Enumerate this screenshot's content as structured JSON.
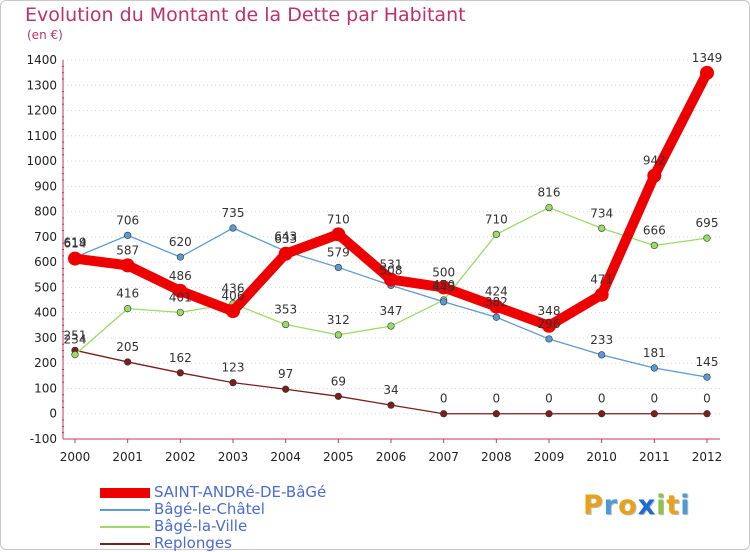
{
  "header": {
    "title": "Evolution du Montant de la Dette par Habitant",
    "subtitle": "(en €)"
  },
  "logo": {
    "text": "Proxiti",
    "letters": [
      "P",
      "r",
      "o",
      "x",
      "i",
      "t",
      "i"
    ],
    "colors": [
      "#e8a21a",
      "#4a9ad6",
      "#e8a21a",
      "#1a6bd6",
      "#8ac24a",
      "#e8a21a",
      "#4a9ad6"
    ]
  },
  "chart_data": {
    "type": "line",
    "title": "Evolution du Montant de la Dette par Habitant",
    "ylabel": "(en €)",
    "x": [
      "2000",
      "2001",
      "2002",
      "2003",
      "2004",
      "2005",
      "2006",
      "2007",
      "2008",
      "2009",
      "2010",
      "2011",
      "2012"
    ],
    "ylim": [
      -100,
      1400
    ],
    "yticks": [
      -100,
      0,
      100,
      200,
      300,
      400,
      500,
      600,
      700,
      800,
      900,
      1000,
      1100,
      1200,
      1300,
      1400
    ],
    "ytick_labels": [
      "-100",
      "0",
      "100",
      "200",
      "300",
      "400",
      "500",
      "600",
      "700",
      "800",
      "900",
      "1000",
      "1100",
      "1200",
      "1300",
      "1400"
    ],
    "legend_position": "bottom-left",
    "series": [
      {
        "name": "SAINT-ANDRé-DE-BâGé",
        "color": "#ee0000",
        "width": "thick",
        "values": [
          614,
          587,
          486,
          406,
          633,
          710,
          531,
          500,
          424,
          348,
          471,
          942,
          1349
        ],
        "labels": [
          "614",
          "587",
          "486",
          "406",
          "633",
          "710",
          "531",
          "500",
          "424",
          "348",
          "471",
          "942",
          "1349"
        ]
      },
      {
        "name": "Bâgé-le-Châtel",
        "color": "#5b9bd5",
        "width": "thin",
        "values": [
          619,
          706,
          620,
          735,
          643,
          579,
          508,
          443,
          382,
          296,
          233,
          181,
          145
        ],
        "labels": [
          "619",
          "706",
          "620",
          "735",
          "643",
          "579",
          "508",
          "443",
          "382",
          "296",
          "233",
          "181",
          "145"
        ]
      },
      {
        "name": "Bâgé-la-Ville",
        "color": "#99dd66",
        "width": "thin",
        "values": [
          234,
          416,
          401,
          436,
          353,
          312,
          347,
          450,
          710,
          816,
          734,
          666,
          695
        ],
        "labels": [
          "234",
          "416",
          "401",
          "436",
          "353",
          "312",
          "347",
          "450",
          "710",
          "816",
          "734",
          "666",
          "695"
        ]
      },
      {
        "name": "Replonges",
        "color": "#7a1f1f",
        "width": "thin",
        "values": [
          251,
          205,
          162,
          123,
          97,
          69,
          34,
          0,
          0,
          0,
          0,
          0,
          0
        ],
        "labels": [
          "251",
          "205",
          "162",
          "123",
          "97",
          "69",
          "34",
          "0",
          "0",
          "0",
          "0",
          "0",
          "0"
        ]
      }
    ]
  }
}
